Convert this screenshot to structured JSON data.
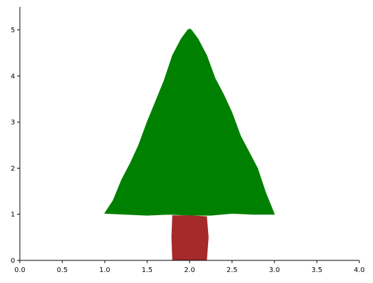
{
  "chart_data": {
    "type": "area",
    "title": "",
    "xlabel": "",
    "ylabel": "",
    "xlim": [
      0,
      4
    ],
    "ylim": [
      0,
      5.5
    ],
    "x_ticks": [
      0,
      0.5,
      1,
      1.5,
      2,
      2.5,
      3,
      3.5,
      4
    ],
    "y_ticks": [
      0,
      1,
      2,
      3,
      4,
      5
    ],
    "x_tick_labels": [
      "0.0",
      "0.5",
      "1.0",
      "1.5",
      "2.0",
      "2.5",
      "3.0",
      "3.5",
      "4.0"
    ],
    "y_tick_labels": [
      "0",
      "1",
      "2",
      "3",
      "4",
      "5"
    ],
    "grid": false,
    "spines": [
      "left",
      "bottom"
    ],
    "series": [
      {
        "shape": "tree-crown",
        "color": "#008000",
        "points": [
          [
            1.0,
            1.02
          ],
          [
            1.1,
            1.3
          ],
          [
            1.2,
            1.75
          ],
          [
            1.3,
            2.1
          ],
          [
            1.4,
            2.5
          ],
          [
            1.5,
            3.0
          ],
          [
            1.6,
            3.45
          ],
          [
            1.7,
            3.9
          ],
          [
            1.8,
            4.45
          ],
          [
            1.9,
            4.8
          ],
          [
            1.98,
            5.0
          ],
          [
            2.0,
            5.02
          ],
          [
            2.02,
            5.0
          ],
          [
            2.1,
            4.8
          ],
          [
            2.2,
            4.45
          ],
          [
            2.3,
            3.95
          ],
          [
            2.4,
            3.6
          ],
          [
            2.5,
            3.2
          ],
          [
            2.6,
            2.7
          ],
          [
            2.7,
            2.35
          ],
          [
            2.8,
            2.0
          ],
          [
            2.9,
            1.45
          ],
          [
            3.0,
            1.0
          ],
          [
            2.75,
            1.0
          ],
          [
            2.5,
            1.02
          ],
          [
            2.25,
            0.98
          ],
          [
            2.0,
            0.98
          ],
          [
            1.75,
            1.0
          ],
          [
            1.5,
            0.98
          ],
          [
            1.25,
            1.0
          ],
          [
            1.0,
            1.02
          ]
        ]
      },
      {
        "shape": "tree-trunk",
        "color": "#a52a2a",
        "points": [
          [
            1.8,
            0.97
          ],
          [
            2.0,
            0.97
          ],
          [
            2.2,
            0.95
          ],
          [
            2.22,
            0.5
          ],
          [
            2.2,
            0.0
          ],
          [
            1.8,
            0.0
          ],
          [
            1.79,
            0.5
          ],
          [
            1.8,
            0.97
          ]
        ]
      }
    ]
  }
}
